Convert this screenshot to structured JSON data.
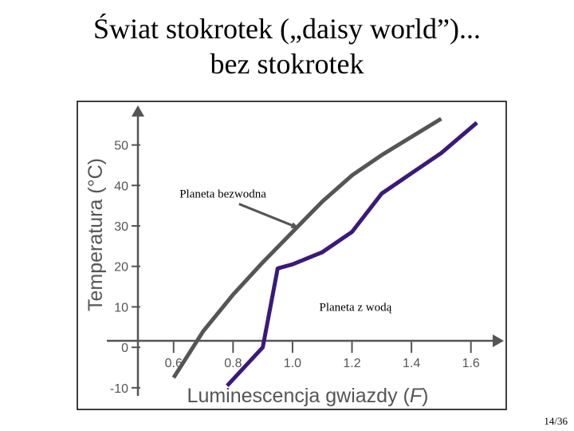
{
  "title": {
    "line1": "Świat stokrotek („daisy world”)...",
    "line2": "bez stokrotek"
  },
  "page_number": "14/36",
  "chart_data": {
    "type": "line",
    "xlabel_prefix": "Luminescencja gwiazdy (",
    "xlabel_var": "F",
    "xlabel_suffix": ")",
    "ylabel": "Temperatura (°C)",
    "xlim": [
      0.48,
      1.7
    ],
    "ylim": [
      -12,
      59
    ],
    "x_ticks": [
      {
        "value": 0.6,
        "label": "0.6"
      },
      {
        "value": 0.8,
        "label": "0.8"
      },
      {
        "value": 1.0,
        "label": "1.0"
      },
      {
        "value": 1.2,
        "label": "1.2"
      },
      {
        "value": 1.4,
        "label": "1.4"
      },
      {
        "value": 1.6,
        "label": "1.6"
      }
    ],
    "y_ticks": [
      {
        "value": -10,
        "label": "-10"
      },
      {
        "value": 0,
        "label": "0"
      },
      {
        "value": 10,
        "label": "10"
      },
      {
        "value": 20,
        "label": "20"
      },
      {
        "value": 30,
        "label": "30"
      },
      {
        "value": 40,
        "label": "40"
      },
      {
        "value": 50,
        "label": "50"
      }
    ],
    "series": [
      {
        "name": "Planeta bezwodna",
        "color": "#555555",
        "x": [
          0.6,
          0.7,
          0.8,
          0.9,
          1.0,
          1.1,
          1.2,
          1.3,
          1.4,
          1.5
        ],
        "y": [
          -7.5,
          4,
          13,
          21,
          28.5,
          36,
          42.5,
          47.5,
          52,
          56.5
        ]
      },
      {
        "name": "Planeta z wodą",
        "color": "#3a1a78",
        "x": [
          0.78,
          0.9,
          0.95,
          1.0,
          1.1,
          1.2,
          1.3,
          1.4,
          1.5,
          1.62
        ],
        "y": [
          -9.5,
          0,
          19.5,
          20.5,
          23.5,
          28.5,
          38,
          43,
          48,
          55.5
        ]
      }
    ],
    "annotations": [
      {
        "text": "Planeta bezwodna",
        "x": 0.62,
        "y": 37,
        "arrow_to": [
          1.02,
          29.5
        ]
      },
      {
        "text": "Planeta z wodą",
        "x": 1.09,
        "y": 9
      }
    ]
  }
}
